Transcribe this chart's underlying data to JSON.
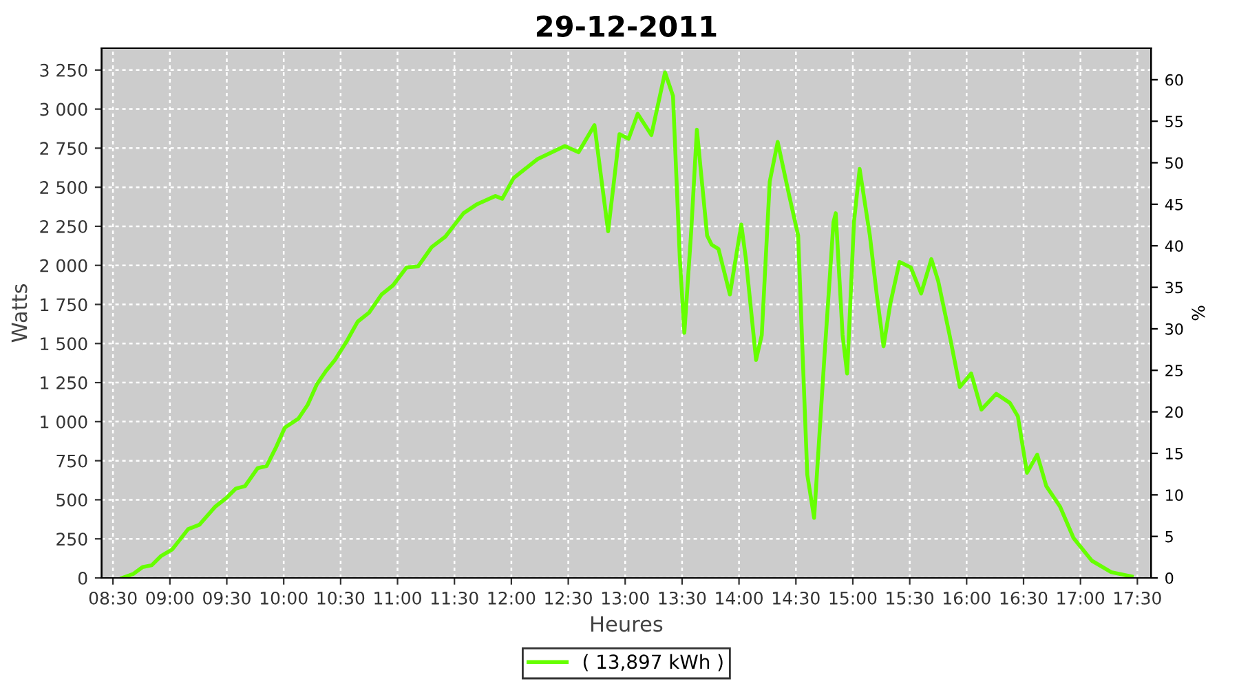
{
  "chart_data": {
    "type": "line",
    "title": "29-12-2011",
    "xlabel": "Heures",
    "ylabel": "Watts",
    "y2label": "%",
    "xlim": [
      8.4,
      17.62
    ],
    "ylim": [
      0,
      3390
    ],
    "y2lim": [
      0,
      63.8
    ],
    "xticks": [
      {
        "value": 8.5,
        "label": "08:30"
      },
      {
        "value": 9,
        "label": "09:00"
      },
      {
        "value": 9.5,
        "label": "09:30"
      },
      {
        "value": 10,
        "label": "10:00"
      },
      {
        "value": 10.5,
        "label": "10:30"
      },
      {
        "value": 11,
        "label": "11:00"
      },
      {
        "value": 11.5,
        "label": "11:30"
      },
      {
        "value": 12,
        "label": "12:00"
      },
      {
        "value": 12.5,
        "label": "12:30"
      },
      {
        "value": 13,
        "label": "13:00"
      },
      {
        "value": 13.5,
        "label": "13:30"
      },
      {
        "value": 14,
        "label": "14:00"
      },
      {
        "value": 14.5,
        "label": "14:30"
      },
      {
        "value": 15,
        "label": "15:00"
      },
      {
        "value": 15.5,
        "label": "15:30"
      },
      {
        "value": 16,
        "label": "16:00"
      },
      {
        "value": 16.5,
        "label": "16:30"
      },
      {
        "value": 17,
        "label": "17:00"
      },
      {
        "value": 17.5,
        "label": "17:30"
      }
    ],
    "yticks": [
      0,
      250,
      500,
      750,
      {
        "value": 1000,
        "label": "1 000"
      },
      {
        "value": 1250,
        "label": "1 250"
      },
      {
        "value": 1500,
        "label": "1 500"
      },
      {
        "value": 1750,
        "label": "1 750"
      },
      {
        "value": 2000,
        "label": "2 000"
      },
      {
        "value": 2250,
        "label": "2 250"
      },
      {
        "value": 2500,
        "label": "2 500"
      },
      {
        "value": 2750,
        "label": "2 750"
      },
      {
        "value": 3000,
        "label": "3 000"
      },
      {
        "value": 3250,
        "label": "3 250"
      }
    ],
    "y2ticks": [
      0,
      5,
      10,
      15,
      20,
      25,
      30,
      35,
      40,
      45,
      50,
      55,
      60
    ],
    "grid": true,
    "legend": "bottom",
    "marker": "none",
    "line_style": "solid",
    "series": [
      {
        "name": "( 13,897 kWh )",
        "color": "#66ff00",
        "x": [
          8.58,
          8.68,
          8.76,
          8.84,
          8.92,
          9.02,
          9.16,
          9.26,
          9.4,
          9.5,
          9.58,
          9.66,
          9.77,
          9.85,
          9.93,
          10.01,
          10.13,
          10.21,
          10.29,
          10.37,
          10.45,
          10.55,
          10.65,
          10.75,
          10.86,
          10.96,
          11.08,
          11.18,
          11.3,
          11.42,
          11.58,
          11.7,
          11.86,
          11.92,
          12.02,
          12.23,
          12.47,
          12.59,
          12.73,
          12.85,
          12.95,
          13.03,
          13.11,
          13.23,
          13.35,
          13.42,
          13.48,
          13.52,
          13.58,
          13.63,
          13.72,
          13.76,
          13.82,
          13.92,
          14.02,
          14.06,
          14.15,
          14.2,
          14.27,
          14.34,
          14.44,
          14.52,
          14.56,
          14.6,
          14.66,
          14.75,
          14.83,
          14.85,
          14.91,
          14.95,
          15.01,
          15.06,
          15.15,
          15.21,
          15.27,
          15.33,
          15.41,
          15.51,
          15.6,
          15.69,
          15.75,
          15.85,
          15.94,
          16.04,
          16.13,
          16.26,
          16.38,
          16.45,
          16.53,
          16.62,
          16.7,
          16.82,
          16.94,
          17.1,
          17.27,
          17.45
        ],
        "values": [
          0,
          26,
          69,
          81,
          139,
          182,
          312,
          341,
          457,
          514,
          572,
          587,
          702,
          716,
          832,
          962,
          1020,
          1107,
          1237,
          1323,
          1395,
          1510,
          1640,
          1698,
          1814,
          1872,
          1987,
          1993,
          2117,
          2184,
          2334,
          2392,
          2444,
          2426,
          2559,
          2680,
          2764,
          2724,
          2897,
          2218,
          2840,
          2810,
          2970,
          2834,
          3235,
          3085,
          2045,
          1568,
          2218,
          2868,
          2190,
          2132,
          2105,
          1814,
          2262,
          2045,
          1395,
          1554,
          2536,
          2790,
          2450,
          2190,
          1410,
          660,
          384,
          1410,
          2276,
          2334,
          1554,
          1308,
          2276,
          2617,
          2190,
          1814,
          1482,
          1757,
          2022,
          1987,
          1820,
          2040,
          1900,
          1554,
          1222,
          1308,
          1077,
          1178,
          1120,
          1034,
          673,
          789,
          587,
          457,
          254,
          110,
          37,
          9
        ]
      }
    ]
  }
}
